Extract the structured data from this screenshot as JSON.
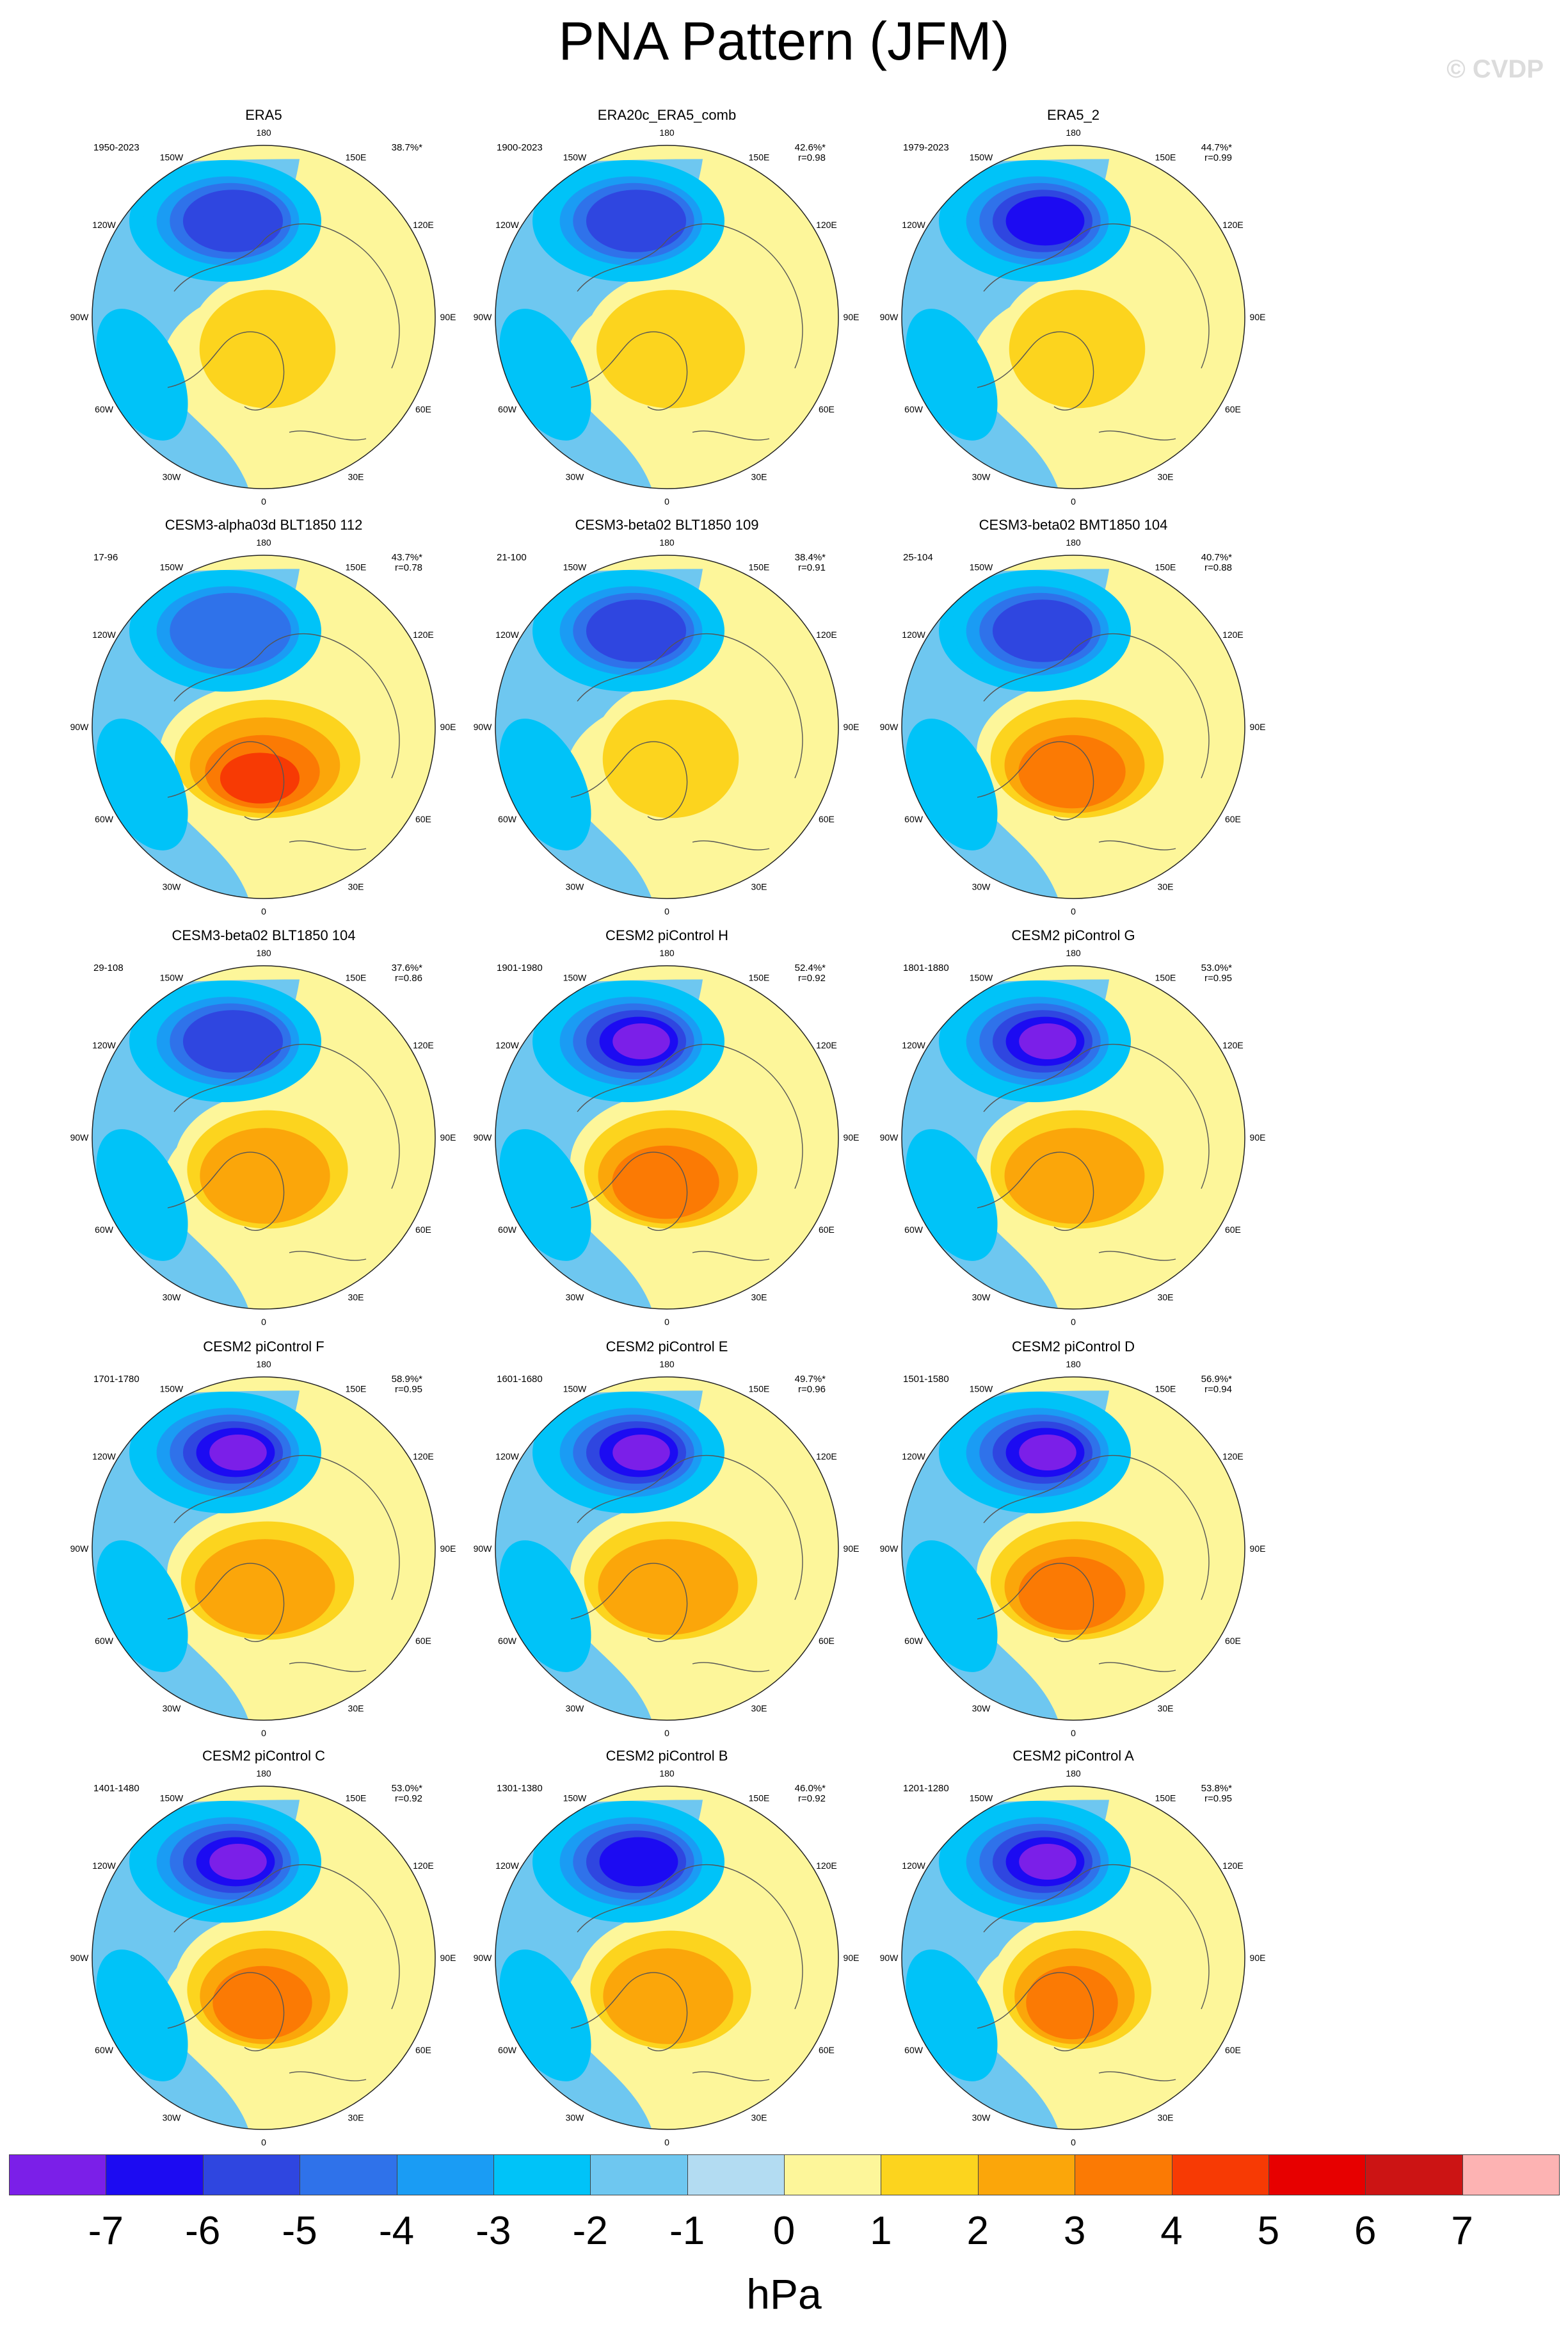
{
  "title": "PNA Pattern (JFM)",
  "credit": "© CVDP",
  "units": "hPa",
  "longitude_labels": [
    "180",
    "150E",
    "120E",
    "90E",
    "60E",
    "30E",
    "0",
    "30W",
    "60W",
    "90W",
    "120W",
    "150W"
  ],
  "colorbar": {
    "colors": [
      "#7b1fe8",
      "#1c0bf2",
      "#2f46e0",
      "#2f72ea",
      "#1a9cf4",
      "#00c3f8",
      "#6ec7f0",
      "#b3dcf2",
      "#fdf69a",
      "#fcd41e",
      "#fba60a",
      "#fb7a04",
      "#f73a04",
      "#e70000",
      "#cc1414",
      "#fdb3b3"
    ],
    "labels": [
      "-7",
      "-6",
      "-5",
      "-4",
      "-3",
      "-2",
      "-1",
      "0",
      "1",
      "2",
      "3",
      "4",
      "5",
      "6",
      "7"
    ]
  },
  "panels": [
    {
      "title": "ERA5",
      "years": "1950-2023",
      "pct": "38.7%*",
      "r": "",
      "blue": 5,
      "orange": 2,
      "arctic": 1.1
    },
    {
      "title": "ERA20c_ERA5_comb",
      "years": "1900-2023",
      "pct": "42.6%*",
      "r": "r=0.98",
      "blue": 5,
      "orange": 2,
      "arctic": 1.2
    },
    {
      "title": "ERA5_2",
      "years": "1979-2023",
      "pct": "44.7%*",
      "r": "r=0.99",
      "blue": 6,
      "orange": 2,
      "arctic": 1.1
    },
    {
      "title": "CESM3-alpha03d BLT1850 112",
      "years": "17-96",
      "pct": "43.7%*",
      "r": "r=0.78",
      "blue": 4,
      "orange": 5,
      "arctic": 1.5
    },
    {
      "title": "CESM3-beta02 BLT1850 109",
      "years": "21-100",
      "pct": "38.4%*",
      "r": "r=0.91",
      "blue": 5,
      "orange": 2,
      "arctic": 1.1
    },
    {
      "title": "CESM3-beta02 BMT1850 104",
      "years": "25-104",
      "pct": "40.7%*",
      "r": "r=0.88",
      "blue": 5,
      "orange": 4,
      "arctic": 1.4
    },
    {
      "title": "CESM3-beta02 BLT1850 104",
      "years": "29-108",
      "pct": "37.6%*",
      "r": "r=0.86",
      "blue": 5,
      "orange": 3,
      "arctic": 1.3
    },
    {
      "title": "CESM2 piControl H",
      "years": "1901-1980",
      "pct": "52.4%*",
      "r": "r=0.92",
      "blue": 7,
      "orange": 4,
      "arctic": 1.4
    },
    {
      "title": "CESM2 piControl G",
      "years": "1801-1880",
      "pct": "53.0%*",
      "r": "r=0.95",
      "blue": 7,
      "orange": 3,
      "arctic": 1.4
    },
    {
      "title": "CESM2 piControl F",
      "years": "1701-1780",
      "pct": "58.9%*",
      "r": "r=0.95",
      "blue": 7,
      "orange": 3,
      "arctic": 1.4
    },
    {
      "title": "CESM2 piControl E",
      "years": "1601-1680",
      "pct": "49.7%*",
      "r": "r=0.96",
      "blue": 7,
      "orange": 3,
      "arctic": 1.4
    },
    {
      "title": "CESM2 piControl D",
      "years": "1501-1580",
      "pct": "56.9%*",
      "r": "r=0.94",
      "blue": 7,
      "orange": 4,
      "arctic": 1.4
    },
    {
      "title": "CESM2 piControl C",
      "years": "1401-1480",
      "pct": "53.0%*",
      "r": "r=0.92",
      "blue": 7,
      "orange": 4,
      "arctic": 1.3
    },
    {
      "title": "CESM2 piControl B",
      "years": "1301-1380",
      "pct": "46.0%*",
      "r": "r=0.92",
      "blue": 6,
      "orange": 3,
      "arctic": 1.3
    },
    {
      "title": "CESM2 piControl A",
      "years": "1201-1280",
      "pct": "53.8%*",
      "r": "r=0.95",
      "blue": 7,
      "orange": 4,
      "arctic": 1.2
    }
  ]
}
